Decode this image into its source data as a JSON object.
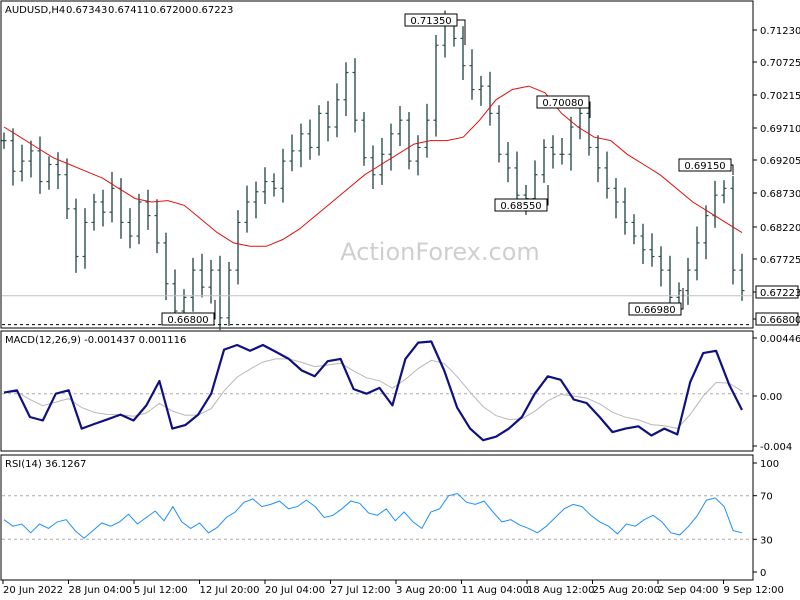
{
  "chart_data": {
    "type": "line",
    "symbol_label": "AUDUSD,H4",
    "ohlc_values": [
      "0.67343",
      "0.67411",
      "0.67200",
      "0.67223"
    ],
    "watermark": "ActionForex.com",
    "x_labels": [
      "20 Jun 2022",
      "28 Jun 04:00",
      "5 Jul 12:00",
      "12 Jul 20:00",
      "20 Jul 04:00",
      "27 Jul 12:00",
      "3 Aug 20:00",
      "11 Aug 04:00",
      "18 Aug 12:00",
      "25 Aug 20:00",
      "2 Sep 04:00",
      "9 Sep 12:00"
    ],
    "price": {
      "ylim": [
        0.6678,
        0.7152
      ],
      "y_ticks": [
        "0.71230",
        "0.70725",
        "0.70215",
        "0.69710",
        "0.69205",
        "0.68730",
        "0.68220",
        "0.67725",
        "0.67223",
        "0.66800"
      ],
      "last_price": "0.67223",
      "support_level": "0.66800",
      "close": [
        0.695,
        0.6905,
        0.692,
        0.6935,
        0.689,
        0.6915,
        0.69,
        0.685,
        0.678,
        0.683,
        0.686,
        0.6845,
        0.688,
        0.683,
        0.681,
        0.686,
        0.684,
        0.68,
        0.674,
        0.67,
        0.672,
        0.676,
        0.6735,
        0.676,
        0.669,
        0.676,
        0.683,
        0.686,
        0.6875,
        0.689,
        0.688,
        0.692,
        0.6935,
        0.696,
        0.694,
        0.699,
        0.697,
        0.701,
        0.705,
        0.698,
        0.6925,
        0.69,
        0.693,
        0.696,
        0.698,
        0.692,
        0.694,
        0.698,
        0.709,
        0.712,
        0.71,
        0.706,
        0.7025,
        0.703,
        0.699,
        0.693,
        0.691,
        0.687,
        0.6865,
        0.69,
        0.694,
        0.693,
        0.693,
        0.697,
        0.699,
        0.694,
        0.691,
        0.688,
        0.686,
        0.683,
        0.681,
        0.679,
        0.678,
        0.676,
        0.672,
        0.673,
        0.676,
        0.68,
        0.684,
        0.687,
        0.688,
        0.676,
        0.673
      ],
      "ma": [
        0.697,
        0.6955,
        0.694,
        0.6925,
        0.6915,
        0.6905,
        0.6895,
        0.688,
        0.6865,
        0.686,
        0.6862,
        0.6855,
        0.6835,
        0.6815,
        0.68,
        0.6795,
        0.6795,
        0.6805,
        0.682,
        0.684,
        0.686,
        0.688,
        0.69,
        0.6915,
        0.693,
        0.6945,
        0.695,
        0.695,
        0.6955,
        0.698,
        0.701,
        0.7025,
        0.703,
        0.702,
        0.699,
        0.697,
        0.6955,
        0.695,
        0.693,
        0.6915,
        0.69,
        0.688,
        0.686,
        0.6845,
        0.683,
        0.6815
      ]
    },
    "annotations": [
      {
        "label": "0.71350",
        "value": 0.7135
      },
      {
        "label": "0.66800",
        "value": 0.668
      },
      {
        "label": "0.70080",
        "value": 0.7008
      },
      {
        "label": "0.68550",
        "value": 0.6855
      },
      {
        "label": "0.69150",
        "value": 0.6915
      },
      {
        "label": "0.66980",
        "value": 0.6698
      }
    ],
    "macd": {
      "label": "MACD(12,26,9) -0.001437 0.001116",
      "ylim": [
        -0.0045,
        0.0048
      ],
      "y_ticks": [
        "0.004469",
        "0.00",
        "-0.004"
      ],
      "main": [
        0.0001,
        0.0003,
        -0.002,
        -0.0023,
        0.0,
        0.0003,
        -0.003,
        -0.0026,
        -0.0022,
        -0.0018,
        -0.0023,
        -0.001,
        0.0011,
        -0.003,
        -0.0027,
        -0.0018,
        0.0,
        0.0038,
        0.0042,
        0.0037,
        0.0042,
        0.0036,
        0.003,
        0.002,
        0.0015,
        0.0028,
        0.003,
        0.0004,
        0.0,
        0.0005,
        -0.001,
        0.003,
        0.0044,
        0.0045,
        0.002,
        -0.0012,
        -0.003,
        -0.004,
        -0.0037,
        -0.003,
        -0.002,
        0.0,
        0.0015,
        0.0012,
        -0.0005,
        -0.0008,
        -0.002,
        -0.0033,
        -0.003,
        -0.0028,
        -0.0036,
        -0.003,
        -0.0035,
        0.001,
        0.0035,
        0.0037,
        0.0008,
        -0.0014
      ]
    },
    "rsi": {
      "label": "RSI(14) 36.1267",
      "ylim": [
        0,
        100
      ],
      "y_ticks": [
        100,
        70,
        30,
        0
      ],
      "levels": [
        70,
        30
      ],
      "values": [
        48,
        42,
        44,
        36,
        44,
        40,
        46,
        48,
        38,
        31,
        38,
        45,
        42,
        46,
        53,
        44,
        50,
        56,
        47,
        60,
        46,
        40,
        45,
        36,
        41,
        50,
        55,
        64,
        67,
        60,
        62,
        65,
        58,
        60,
        66,
        60,
        50,
        52,
        58,
        65,
        63,
        54,
        52,
        58,
        47,
        55,
        46,
        40,
        55,
        58,
        70,
        72,
        64,
        62,
        65,
        55,
        46,
        48,
        43,
        40,
        36,
        42,
        50,
        58,
        62,
        60,
        52,
        46,
        42,
        35,
        44,
        42,
        48,
        52,
        46,
        36,
        34,
        42,
        52,
        66,
        68,
        60,
        38,
        36
      ]
    }
  }
}
